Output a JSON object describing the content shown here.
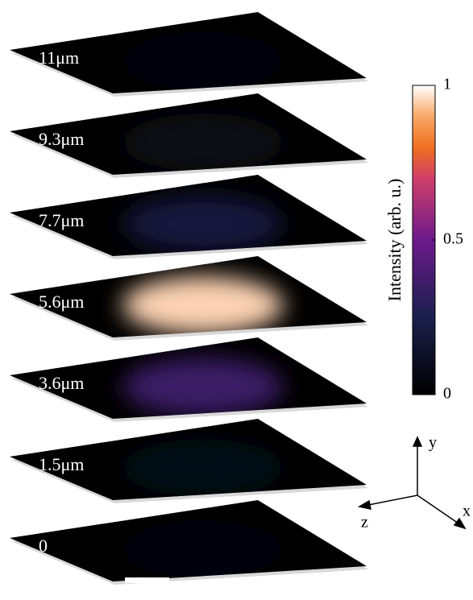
{
  "slices": [
    {
      "label": "11μm",
      "intensity": 0.05
    },
    {
      "label": "9.3μm",
      "intensity": 0.08
    },
    {
      "label": "7.7μm",
      "intensity": 0.2
    },
    {
      "label": "5.6μm",
      "intensity": 0.95
    },
    {
      "label": "3.6μm",
      "intensity": 0.35
    },
    {
      "label": "1.5μm",
      "intensity": 0.06
    },
    {
      "label": "0",
      "intensity": 0.03
    }
  ],
  "colorbar": {
    "label": "Intensity (arb. u.)",
    "lim": [
      0,
      1
    ],
    "ticks": [
      0,
      0.5,
      1
    ]
  },
  "axes": {
    "x": "x",
    "y": "y",
    "z": "z"
  }
}
